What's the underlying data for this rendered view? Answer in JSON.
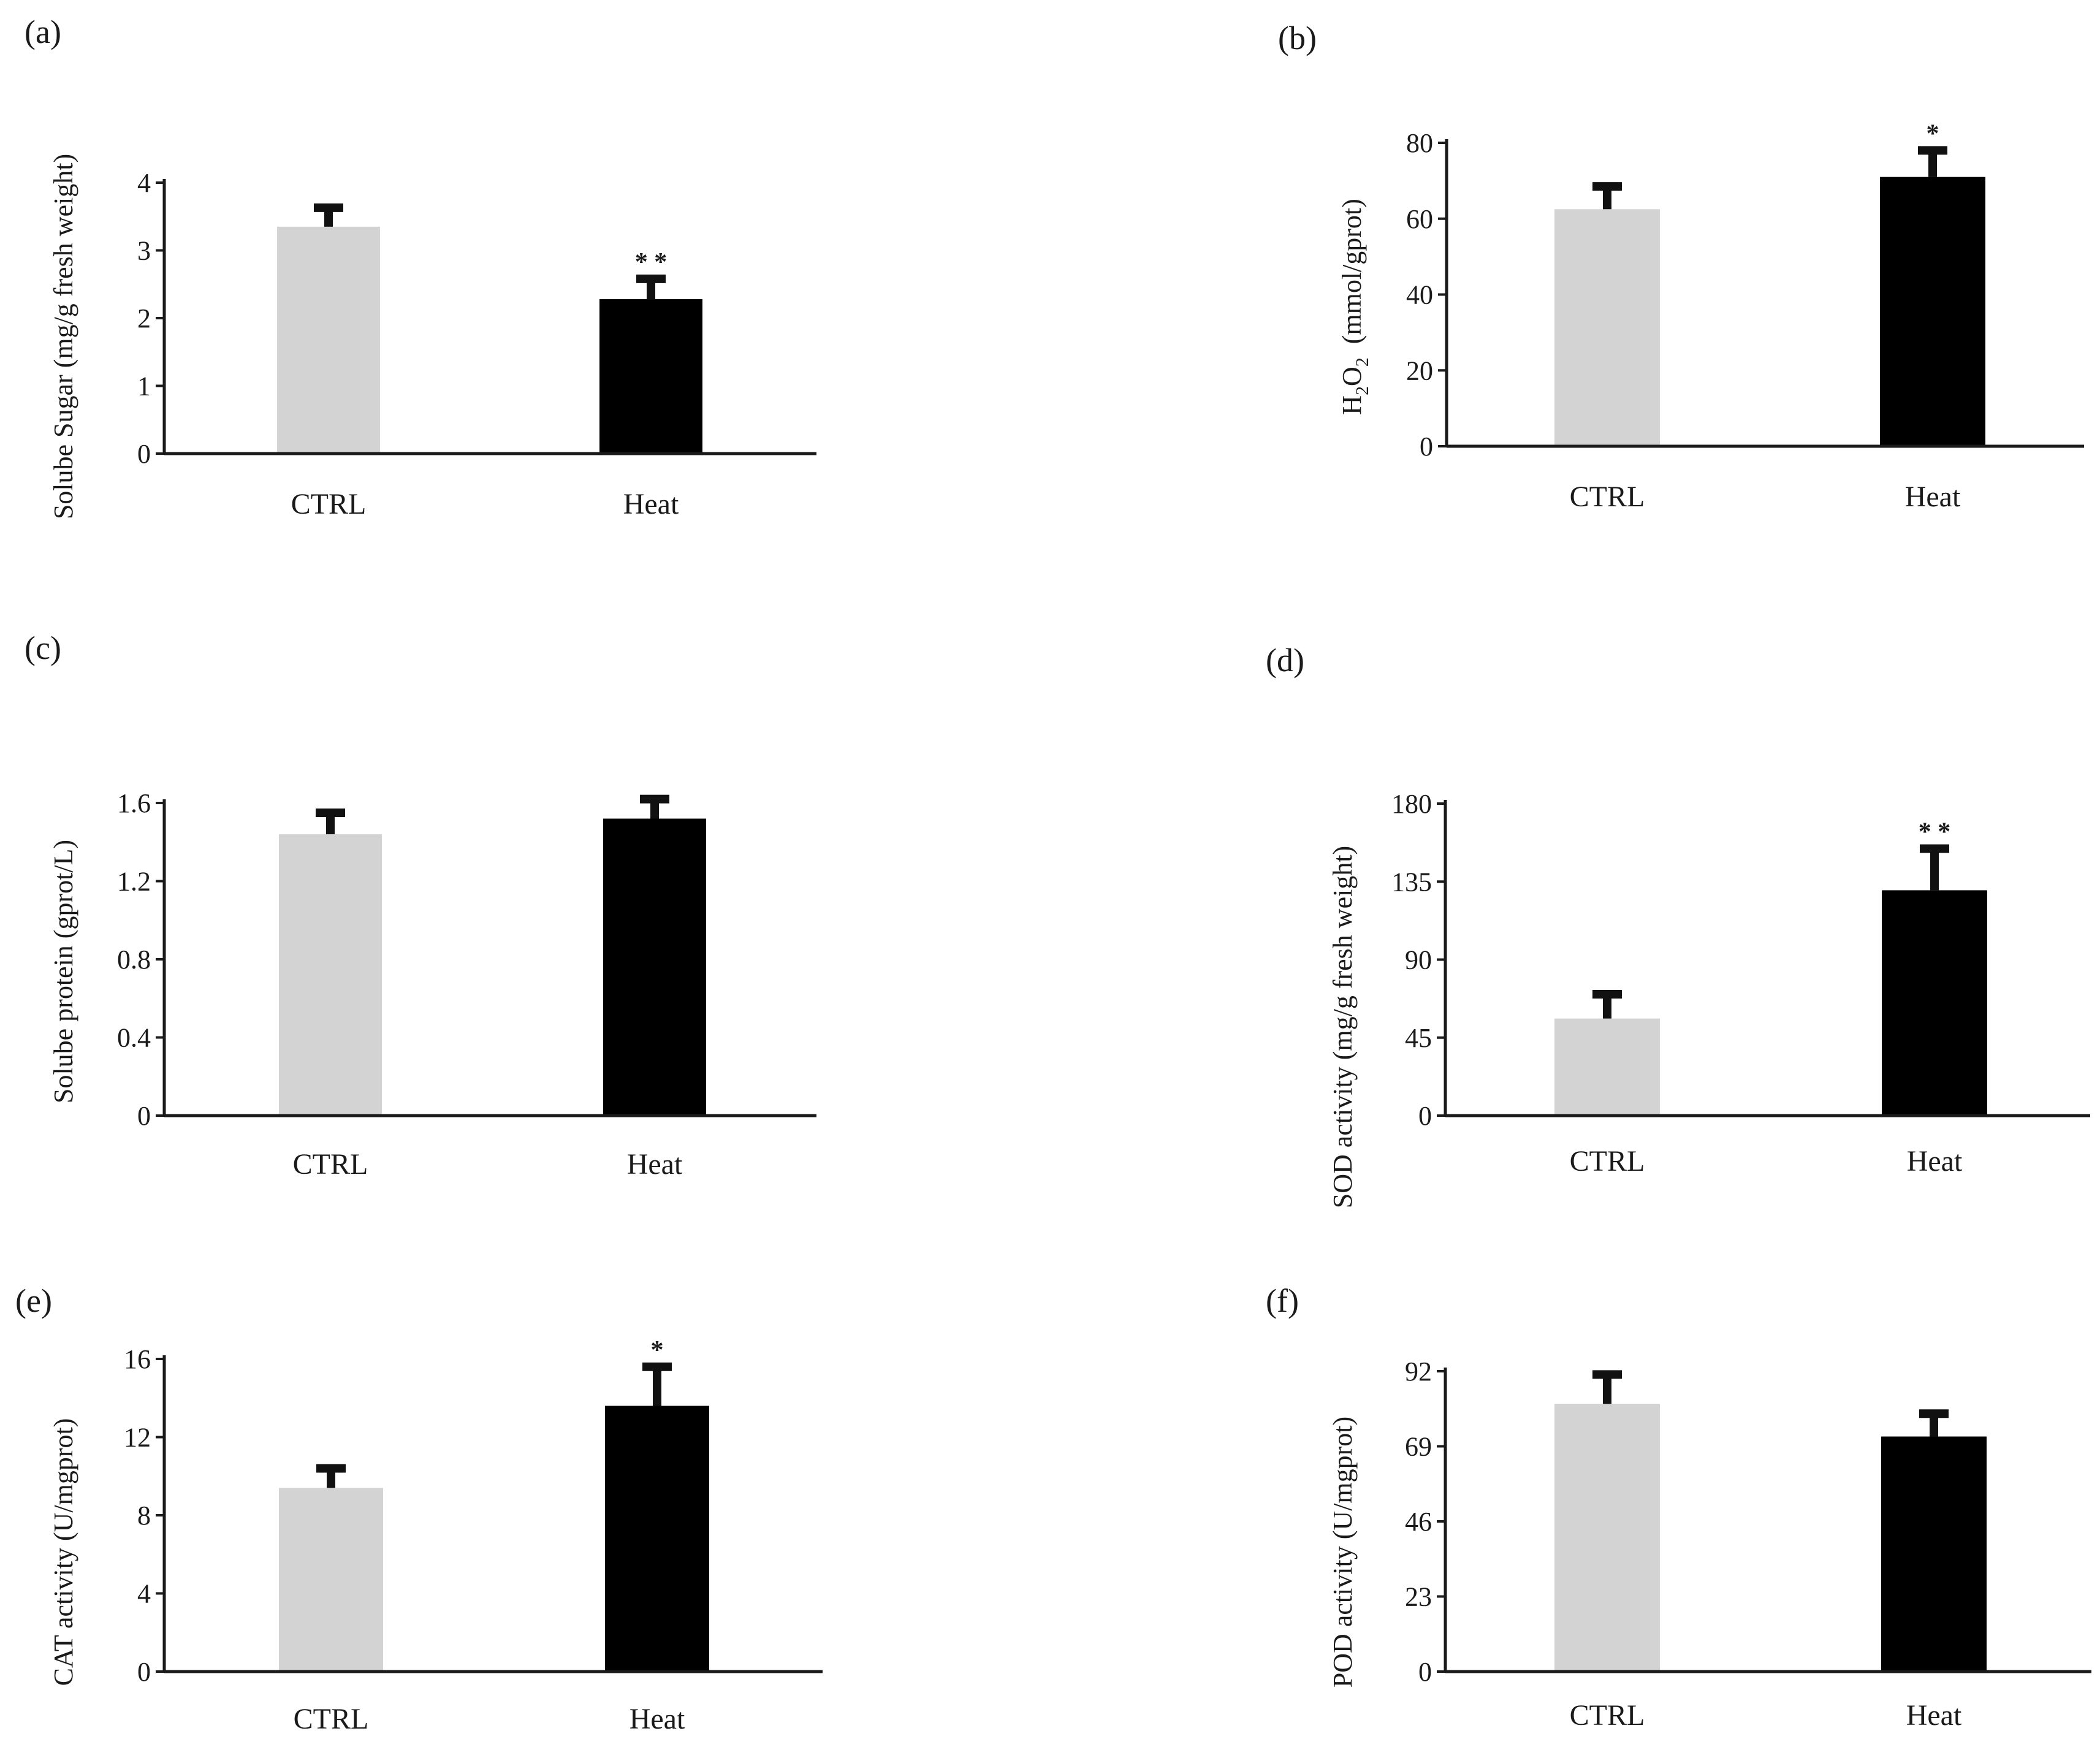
{
  "chart_data": [
    {
      "type": "bar",
      "panel": "(a)",
      "categories": [
        "CTRL",
        "Heat"
      ],
      "values": [
        3.35,
        2.28
      ],
      "errors": [
        0.28,
        0.3
      ],
      "significance": [
        "",
        "**"
      ],
      "ylabel": "Solube Sugar (mg/g fresh weight)",
      "ylim": [
        0,
        4
      ],
      "yticks": [
        0,
        1,
        2,
        3,
        4
      ],
      "colors": [
        "#d3d3d3",
        "#000000"
      ]
    },
    {
      "type": "bar",
      "panel": "(b)",
      "categories": [
        "CTRL",
        "Heat"
      ],
      "values": [
        62.5,
        71
      ],
      "errors": [
        6,
        7
      ],
      "significance": [
        "",
        "*"
      ],
      "ylabel_parts": [
        "H",
        "2",
        "O",
        "2",
        "(mmol/gprot)"
      ],
      "ylim": [
        0,
        80
      ],
      "yticks": [
        0,
        20,
        40,
        60,
        80
      ],
      "colors": [
        "#d3d3d3",
        "#000000"
      ]
    },
    {
      "type": "bar",
      "panel": "(c)",
      "categories": [
        "CTRL",
        "Heat"
      ],
      "values": [
        1.44,
        1.52
      ],
      "errors": [
        0.11,
        0.1
      ],
      "significance": [
        "",
        ""
      ],
      "ylabel": "Solube protein  (gprot/L)",
      "ylim": [
        0,
        1.6
      ],
      "yticks": [
        "0",
        "0.4",
        "0.8",
        "1.2",
        "1.6"
      ],
      "colors": [
        "#d3d3d3",
        "#000000"
      ]
    },
    {
      "type": "bar",
      "panel": "(d)",
      "categories": [
        "CTRL",
        "Heat"
      ],
      "values": [
        56,
        130
      ],
      "errors": [
        14,
        24
      ],
      "significance": [
        "",
        "**"
      ],
      "ylabel": "SOD activity  (mg/g fresh weight)",
      "ylim": [
        0,
        180
      ],
      "yticks": [
        0,
        45,
        90,
        135,
        180
      ],
      "colors": [
        "#d3d3d3",
        "#000000"
      ]
    },
    {
      "type": "bar",
      "panel": "(e)",
      "categories": [
        "CTRL",
        "Heat"
      ],
      "values": [
        9.4,
        13.6
      ],
      "errors": [
        1.0,
        2.0
      ],
      "significance": [
        "",
        "*"
      ],
      "ylabel": "CAT activity  (U/mgprot)",
      "ylim": [
        0,
        16
      ],
      "yticks": [
        0,
        4,
        8,
        12,
        16
      ],
      "colors": [
        "#d3d3d3",
        "#000000"
      ]
    },
    {
      "type": "bar",
      "panel": "(f)",
      "categories": [
        "CTRL",
        "Heat"
      ],
      "values": [
        82,
        72
      ],
      "errors": [
        9,
        7
      ],
      "significance": [
        "",
        ""
      ],
      "ylabel": "POD activity  (U/mgprot)",
      "ylim": [
        0,
        92
      ],
      "yticks": [
        0,
        23,
        46,
        69,
        92
      ],
      "colors": [
        "#d3d3d3",
        "#000000"
      ]
    }
  ]
}
